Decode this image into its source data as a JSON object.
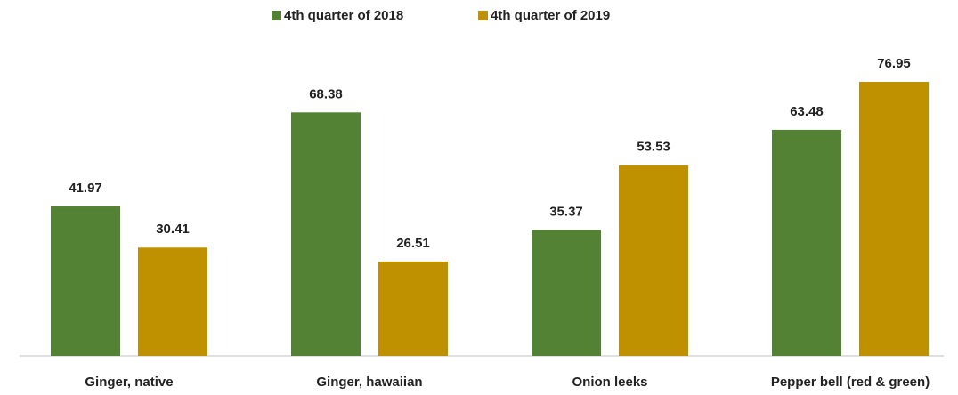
{
  "chart_data": {
    "type": "bar",
    "categories": [
      "Ginger, native",
      "Ginger, hawaiian",
      "Onion leeks",
      "Pepper bell (red & green)"
    ],
    "series": [
      {
        "name": "4th quarter of 2018",
        "color": "#548235",
        "values": [
          41.97,
          68.38,
          35.37,
          63.48
        ]
      },
      {
        "name": "4th quarter of 2019",
        "color": "#bf9000",
        "values": [
          30.41,
          26.51,
          53.53,
          76.95
        ]
      }
    ],
    "legend": "top"
  }
}
